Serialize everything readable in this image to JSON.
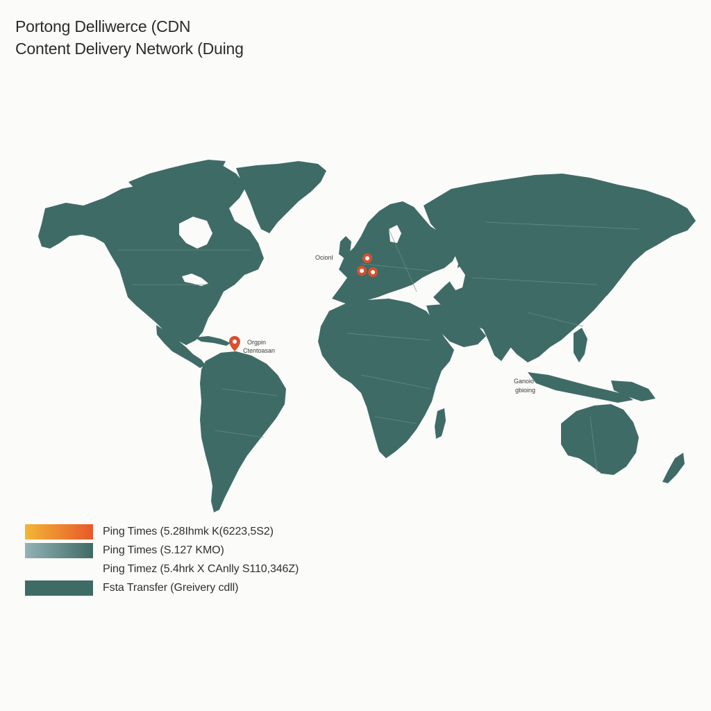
{
  "header": {
    "title_line1": "Portong Delliwerce (CDN",
    "title_line2": "Content Delivery Network (Duing"
  },
  "map": {
    "land_color": "#3f6b66",
    "marker_color": "#d8502f",
    "labels": {
      "europe": "Ocionl",
      "caribbean_line1": "Orgpin",
      "caribbean_line2": "Ctentoasan",
      "asia_line1": "Ganoio",
      "asia_line2": "gbioing"
    },
    "markers": [
      {
        "name": "caribbean-origin",
        "icon": "map-pin-icon"
      },
      {
        "name": "europe-node-1",
        "icon": "map-pin-icon"
      },
      {
        "name": "europe-node-2",
        "icon": "map-pin-icon"
      },
      {
        "name": "europe-node-3",
        "icon": "map-pin-icon"
      }
    ]
  },
  "legend": {
    "items": [
      {
        "label": "Ping Times (5.28Ihmk K(6223,5S2)",
        "color_start": "#f2b636",
        "color_end": "#e8582a"
      },
      {
        "label": "Ping Times (S.127 KMO)",
        "color_start": "#93b2b6",
        "color_end": "#3f6b66"
      },
      {
        "label": "Ping Timez (5.4hrk X CAnlly S110,346Z)",
        "color_start": "#3f6b66",
        "color_end": "#3f6b66"
      },
      {
        "label": "Fsta Transfer (Greivery cdll)",
        "color_start": "#3f6b66",
        "color_end": "#3f6b66"
      }
    ]
  }
}
